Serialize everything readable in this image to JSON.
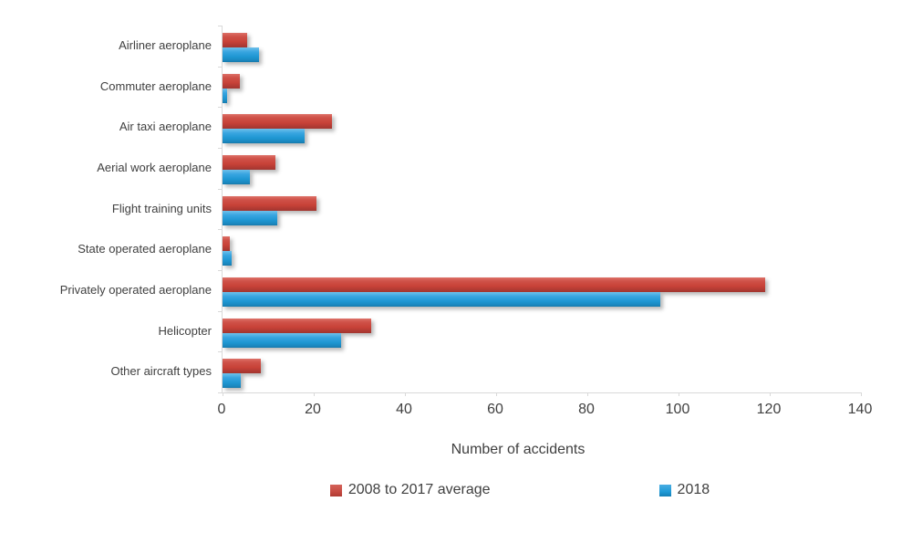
{
  "chart_data": {
    "type": "bar",
    "orientation": "horizontal",
    "title": "",
    "xlabel": "Number of accidents",
    "ylabel": "",
    "xlim": [
      0,
      140
    ],
    "xticks": [
      0,
      20,
      40,
      60,
      80,
      100,
      120,
      140
    ],
    "grid": false,
    "legend_position": "bottom",
    "categories": [
      "Airliner aeroplane",
      "Commuter aeroplane",
      "Air taxi aeroplane",
      "Aerial work aeroplane",
      "Flight training units",
      "State operated aeroplane",
      "Privately operated aeroplane",
      "Helicopter",
      "Other aircraft types"
    ],
    "series": [
      {
        "name": "2008 to 2017 average",
        "color": "#c54a42",
        "values": [
          5.4,
          3.7,
          23.9,
          11.6,
          20.6,
          1.6,
          119,
          32.6,
          8.3
        ]
      },
      {
        "name": "2018",
        "color": "#1f9ad7",
        "values": [
          8,
          1,
          18,
          6,
          12,
          2,
          96,
          26,
          4
        ]
      }
    ]
  },
  "colors": {
    "axis_line": "#d9d9d9",
    "text": "#3f3f3f",
    "background": "#ffffff"
  }
}
